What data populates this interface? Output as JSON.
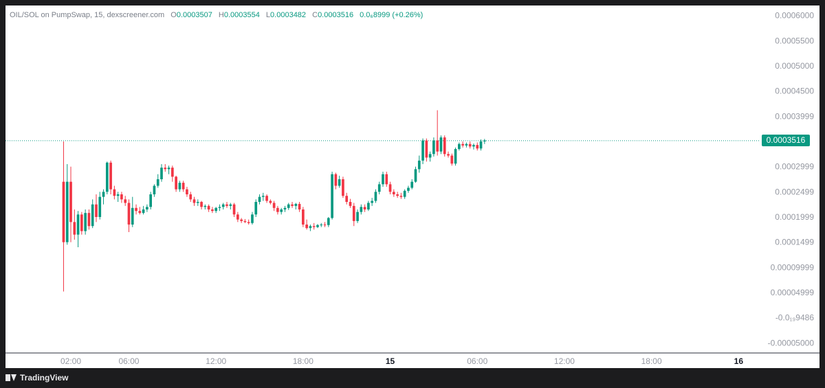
{
  "header": {
    "symbol": "OIL/SOL on PumpSwap, 15, dexscreener.com",
    "open_label": "O",
    "open": "0.0003507",
    "high_label": "H",
    "high": "0.0003554",
    "low_label": "L",
    "low": "0.0003482",
    "close_label": "C",
    "close": "0.0003516",
    "change": "0.0₆8999 (+0.26%)"
  },
  "last_price": "0.0003516",
  "footer": {
    "brand": "TradingView"
  },
  "colors": {
    "up": "#089981",
    "down": "#f23645",
    "axis_text": "#9598a1",
    "last_line": "#089981"
  },
  "chart_data": {
    "type": "candlestick",
    "title": "",
    "xlabel": "",
    "ylabel": "",
    "ylim": [
      -7e-05,
      0.00062
    ],
    "y_ticks": [
      {
        "value": 0.0006,
        "label": "0.0006000"
      },
      {
        "value": 0.00055,
        "label": "0.0005500"
      },
      {
        "value": 0.0005,
        "label": "0.0005000"
      },
      {
        "value": 0.00045,
        "label": "0.0004500"
      },
      {
        "value": 0.0004,
        "label": "0.0003999"
      },
      {
        "value": 0.00035,
        "label": ""
      },
      {
        "value": 0.0003,
        "label": "0.0002999"
      },
      {
        "value": 0.00025,
        "label": "0.0002499"
      },
      {
        "value": 0.0002,
        "label": "0.0001999"
      },
      {
        "value": 0.00015,
        "label": "0.0001499"
      },
      {
        "value": 0.0001,
        "label": "0.00009999"
      },
      {
        "value": 5e-05,
        "label": "0.00004999"
      },
      {
        "value": 0.0,
        "label": "-0.0₁₉9486"
      },
      {
        "value": -5e-05,
        "label": "-0.00005000"
      }
    ],
    "x_ticks": [
      {
        "hour": 2,
        "label": "02:00",
        "bold": false
      },
      {
        "hour": 6,
        "label": "06:00",
        "bold": false
      },
      {
        "hour": 12,
        "label": "12:00",
        "bold": false
      },
      {
        "hour": 18,
        "label": "18:00",
        "bold": false
      },
      {
        "hour": 24,
        "label": "15",
        "bold": true
      },
      {
        "hour": 30,
        "label": "06:00",
        "bold": false
      },
      {
        "hour": 36,
        "label": "12:00",
        "bold": false
      },
      {
        "hour": 42,
        "label": "18:00",
        "bold": false
      },
      {
        "hour": 48,
        "label": "16",
        "bold": true
      }
    ],
    "x_range_hours": [
      -2.5,
      49.5
    ],
    "interval_minutes": 15,
    "last_price": 0.0003516,
    "candles": [
      {
        "t": 1.5,
        "o": 0.00027,
        "h": 0.00035,
        "l": 5.2e-05,
        "c": 0.00015
      },
      {
        "t": 1.75,
        "o": 0.00015,
        "h": 0.000305,
        "l": 0.000145,
        "c": 0.00027
      },
      {
        "t": 2.0,
        "o": 0.00027,
        "h": 0.0003,
        "l": 0.00015,
        "c": 0.00019
      },
      {
        "t": 2.25,
        "o": 0.00019,
        "h": 0.000215,
        "l": 0.000155,
        "c": 0.000165
      },
      {
        "t": 2.5,
        "o": 0.000165,
        "h": 0.000212,
        "l": 0.00014,
        "c": 0.000205
      },
      {
        "t": 2.75,
        "o": 0.000205,
        "h": 0.00021,
        "l": 0.000165,
        "c": 0.000172
      },
      {
        "t": 3.0,
        "o": 0.000172,
        "h": 0.000215,
        "l": 0.000165,
        "c": 0.000208
      },
      {
        "t": 3.25,
        "o": 0.000208,
        "h": 0.000215,
        "l": 0.000175,
        "c": 0.000182
      },
      {
        "t": 3.5,
        "o": 0.000182,
        "h": 0.000235,
        "l": 0.000178,
        "c": 0.000225
      },
      {
        "t": 3.75,
        "o": 0.000225,
        "h": 0.000245,
        "l": 0.00019,
        "c": 0.0002
      },
      {
        "t": 4.0,
        "o": 0.0002,
        "h": 0.00025,
        "l": 0.000195,
        "c": 0.00024
      },
      {
        "t": 4.25,
        "o": 0.00024,
        "h": 0.000255,
        "l": 0.000225,
        "c": 0.00025
      },
      {
        "t": 4.5,
        "o": 0.00025,
        "h": 0.00031,
        "l": 0.000245,
        "c": 0.000308
      },
      {
        "t": 4.75,
        "o": 0.000308,
        "h": 0.000312,
        "l": 0.000245,
        "c": 0.000255
      },
      {
        "t": 5.0,
        "o": 0.000255,
        "h": 0.000262,
        "l": 0.000235,
        "c": 0.000242
      },
      {
        "t": 5.25,
        "o": 0.000242,
        "h": 0.00025,
        "l": 0.00023,
        "c": 0.000245
      },
      {
        "t": 5.5,
        "o": 0.000245,
        "h": 0.00025,
        "l": 0.000228,
        "c": 0.000235
      },
      {
        "t": 5.75,
        "o": 0.000235,
        "h": 0.000242,
        "l": 0.000222,
        "c": 0.000228
      },
      {
        "t": 6.0,
        "o": 0.000228,
        "h": 0.000235,
        "l": 0.00017,
        "c": 0.000185
      },
      {
        "t": 6.25,
        "o": 0.000185,
        "h": 0.00024,
        "l": 0.00018,
        "c": 0.000218
      },
      {
        "t": 6.5,
        "o": 0.000218,
        "h": 0.000225,
        "l": 0.000205,
        "c": 0.000212
      },
      {
        "t": 6.75,
        "o": 0.000212,
        "h": 0.00022,
        "l": 0.000205,
        "c": 0.000208
      },
      {
        "t": 7.0,
        "o": 0.000208,
        "h": 0.000222,
        "l": 0.000205,
        "c": 0.000215
      },
      {
        "t": 7.25,
        "o": 0.000215,
        "h": 0.000225,
        "l": 0.00021,
        "c": 0.00022
      },
      {
        "t": 7.5,
        "o": 0.00022,
        "h": 0.00025,
        "l": 0.000215,
        "c": 0.000245
      },
      {
        "t": 7.75,
        "o": 0.000245,
        "h": 0.000265,
        "l": 0.00024,
        "c": 0.000262
      },
      {
        "t": 8.0,
        "o": 0.000262,
        "h": 0.000285,
        "l": 0.000258,
        "c": 0.000275
      },
      {
        "t": 8.25,
        "o": 0.000275,
        "h": 0.000305,
        "l": 0.00027,
        "c": 0.000298
      },
      {
        "t": 8.5,
        "o": 0.000298,
        "h": 0.000305,
        "l": 0.00029,
        "c": 0.000295
      },
      {
        "t": 8.75,
        "o": 0.000295,
        "h": 0.000302,
        "l": 0.000285,
        "c": 0.000298
      },
      {
        "t": 9.0,
        "o": 0.000298,
        "h": 0.000302,
        "l": 0.00027,
        "c": 0.00028
      },
      {
        "t": 9.25,
        "o": 0.00028,
        "h": 0.000282,
        "l": 0.00025,
        "c": 0.000255
      },
      {
        "t": 9.5,
        "o": 0.000255,
        "h": 0.000272,
        "l": 0.00025,
        "c": 0.000268
      },
      {
        "t": 9.75,
        "o": 0.000268,
        "h": 0.000272,
        "l": 0.00025,
        "c": 0.000255
      },
      {
        "t": 10.0,
        "o": 0.000255,
        "h": 0.00026,
        "l": 0.00024,
        "c": 0.000245
      },
      {
        "t": 10.25,
        "o": 0.000245,
        "h": 0.00025,
        "l": 0.00023,
        "c": 0.000235
      },
      {
        "t": 10.5,
        "o": 0.000235,
        "h": 0.00024,
        "l": 0.000222,
        "c": 0.000228
      },
      {
        "t": 10.75,
        "o": 0.000228,
        "h": 0.000235,
        "l": 0.000222,
        "c": 0.00023
      },
      {
        "t": 11.0,
        "o": 0.00023,
        "h": 0.000232,
        "l": 0.000215,
        "c": 0.00022
      },
      {
        "t": 11.25,
        "o": 0.00022,
        "h": 0.000225,
        "l": 0.000215,
        "c": 0.000222
      },
      {
        "t": 11.5,
        "o": 0.000222,
        "h": 0.000225,
        "l": 0.00021,
        "c": 0.000215
      },
      {
        "t": 11.75,
        "o": 0.000215,
        "h": 0.00022,
        "l": 0.000208,
        "c": 0.000212
      },
      {
        "t": 12.0,
        "o": 0.000212,
        "h": 0.00022,
        "l": 0.000208,
        "c": 0.000218
      },
      {
        "t": 12.25,
        "o": 0.000218,
        "h": 0.000225,
        "l": 0.000212,
        "c": 0.00022
      },
      {
        "t": 12.5,
        "o": 0.00022,
        "h": 0.000228,
        "l": 0.000215,
        "c": 0.000225
      },
      {
        "t": 12.75,
        "o": 0.000225,
        "h": 0.00023,
        "l": 0.000218,
        "c": 0.000222
      },
      {
        "t": 13.0,
        "o": 0.000222,
        "h": 0.000228,
        "l": 0.000215,
        "c": 0.000225
      },
      {
        "t": 13.25,
        "o": 0.000225,
        "h": 0.000228,
        "l": 0.0002,
        "c": 0.000205
      },
      {
        "t": 13.5,
        "o": 0.000205,
        "h": 0.00021,
        "l": 0.00019,
        "c": 0.000195
      },
      {
        "t": 13.75,
        "o": 0.000195,
        "h": 0.000198,
        "l": 0.000188,
        "c": 0.000192
      },
      {
        "t": 14.0,
        "o": 0.000192,
        "h": 0.000196,
        "l": 0.000188,
        "c": 0.00019
      },
      {
        "t": 14.25,
        "o": 0.00019,
        "h": 0.000195,
        "l": 0.000185,
        "c": 0.000188
      },
      {
        "t": 14.5,
        "o": 0.000188,
        "h": 0.00021,
        "l": 0.000185,
        "c": 0.000205
      },
      {
        "t": 14.75,
        "o": 0.000205,
        "h": 0.000235,
        "l": 0.0002,
        "c": 0.00023
      },
      {
        "t": 15.0,
        "o": 0.00023,
        "h": 0.000245,
        "l": 0.000225,
        "c": 0.00024
      },
      {
        "t": 15.25,
        "o": 0.00024,
        "h": 0.000248,
        "l": 0.000232,
        "c": 0.000242
      },
      {
        "t": 15.5,
        "o": 0.000242,
        "h": 0.000245,
        "l": 0.000228,
        "c": 0.000232
      },
      {
        "t": 15.75,
        "o": 0.000232,
        "h": 0.000235,
        "l": 0.000225,
        "c": 0.000228
      },
      {
        "t": 16.0,
        "o": 0.000228,
        "h": 0.000232,
        "l": 0.000212,
        "c": 0.000218
      },
      {
        "t": 16.25,
        "o": 0.000218,
        "h": 0.000222,
        "l": 0.000205,
        "c": 0.00021
      },
      {
        "t": 16.5,
        "o": 0.00021,
        "h": 0.000218,
        "l": 0.000205,
        "c": 0.000215
      },
      {
        "t": 16.75,
        "o": 0.000215,
        "h": 0.000222,
        "l": 0.00021,
        "c": 0.000218
      },
      {
        "t": 17.0,
        "o": 0.000218,
        "h": 0.000228,
        "l": 0.000214,
        "c": 0.000225
      },
      {
        "t": 17.25,
        "o": 0.000225,
        "h": 0.00023,
        "l": 0.000218,
        "c": 0.000222
      },
      {
        "t": 17.5,
        "o": 0.000222,
        "h": 0.000228,
        "l": 0.000215,
        "c": 0.000226
      },
      {
        "t": 17.75,
        "o": 0.000226,
        "h": 0.00023,
        "l": 0.00021,
        "c": 0.000215
      },
      {
        "t": 18.0,
        "o": 0.000215,
        "h": 0.00022,
        "l": 0.00018,
        "c": 0.000185
      },
      {
        "t": 18.25,
        "o": 0.000185,
        "h": 0.000195,
        "l": 0.000175,
        "c": 0.000178
      },
      {
        "t": 18.5,
        "o": 0.000178,
        "h": 0.000185,
        "l": 0.000172,
        "c": 0.000182
      },
      {
        "t": 18.75,
        "o": 0.000182,
        "h": 0.000188,
        "l": 0.000175,
        "c": 0.00018
      },
      {
        "t": 19.0,
        "o": 0.00018,
        "h": 0.000186,
        "l": 0.000178,
        "c": 0.000184
      },
      {
        "t": 19.25,
        "o": 0.000184,
        "h": 0.000188,
        "l": 0.00018,
        "c": 0.000185
      },
      {
        "t": 19.5,
        "o": 0.000185,
        "h": 0.00019,
        "l": 0.00018,
        "c": 0.000184
      },
      {
        "t": 19.75,
        "o": 0.000184,
        "h": 0.0002,
        "l": 0.00018,
        "c": 0.000198
      },
      {
        "t": 20.0,
        "o": 0.000198,
        "h": 0.00029,
        "l": 0.000195,
        "c": 0.000285
      },
      {
        "t": 20.25,
        "o": 0.000285,
        "h": 0.000288,
        "l": 0.000255,
        "c": 0.000262
      },
      {
        "t": 20.5,
        "o": 0.000262,
        "h": 0.000282,
        "l": 0.000258,
        "c": 0.000275
      },
      {
        "t": 20.75,
        "o": 0.000275,
        "h": 0.00028,
        "l": 0.000238,
        "c": 0.000242
      },
      {
        "t": 21.0,
        "o": 0.000242,
        "h": 0.000248,
        "l": 0.000225,
        "c": 0.00023
      },
      {
        "t": 21.25,
        "o": 0.00023,
        "h": 0.000236,
        "l": 0.000218,
        "c": 0.000222
      },
      {
        "t": 21.5,
        "o": 0.000222,
        "h": 0.000228,
        "l": 0.000182,
        "c": 0.000192
      },
      {
        "t": 21.75,
        "o": 0.000192,
        "h": 0.000215,
        "l": 0.000188,
        "c": 0.00021
      },
      {
        "t": 22.0,
        "o": 0.00021,
        "h": 0.000225,
        "l": 0.000205,
        "c": 0.00022
      },
      {
        "t": 22.25,
        "o": 0.00022,
        "h": 0.000225,
        "l": 0.00021,
        "c": 0.000215
      },
      {
        "t": 22.5,
        "o": 0.000215,
        "h": 0.000232,
        "l": 0.000212,
        "c": 0.000228
      },
      {
        "t": 22.75,
        "o": 0.000228,
        "h": 0.000238,
        "l": 0.000222,
        "c": 0.000232
      },
      {
        "t": 23.0,
        "o": 0.000232,
        "h": 0.000255,
        "l": 0.000228,
        "c": 0.00025
      },
      {
        "t": 23.25,
        "o": 0.00025,
        "h": 0.00027,
        "l": 0.000245,
        "c": 0.000265
      },
      {
        "t": 23.5,
        "o": 0.000265,
        "h": 0.00029,
        "l": 0.00026,
        "c": 0.000285
      },
      {
        "t": 23.75,
        "o": 0.000285,
        "h": 0.00029,
        "l": 0.00026,
        "c": 0.000265
      },
      {
        "t": 24.0,
        "o": 0.000265,
        "h": 0.00027,
        "l": 0.000245,
        "c": 0.00025
      },
      {
        "t": 24.25,
        "o": 0.00025,
        "h": 0.000255,
        "l": 0.00024,
        "c": 0.000245
      },
      {
        "t": 24.5,
        "o": 0.000245,
        "h": 0.00025,
        "l": 0.000238,
        "c": 0.000242
      },
      {
        "t": 24.75,
        "o": 0.000242,
        "h": 0.000248,
        "l": 0.000236,
        "c": 0.00024
      },
      {
        "t": 25.0,
        "o": 0.00024,
        "h": 0.000255,
        "l": 0.000236,
        "c": 0.000252
      },
      {
        "t": 25.25,
        "o": 0.000252,
        "h": 0.000262,
        "l": 0.000248,
        "c": 0.000258
      },
      {
        "t": 25.5,
        "o": 0.000258,
        "h": 0.000275,
        "l": 0.000255,
        "c": 0.00027
      },
      {
        "t": 25.75,
        "o": 0.00027,
        "h": 0.0003,
        "l": 0.000268,
        "c": 0.000295
      },
      {
        "t": 26.0,
        "o": 0.000295,
        "h": 0.000322,
        "l": 0.000288,
        "c": 0.000312
      },
      {
        "t": 26.25,
        "o": 0.000312,
        "h": 0.000356,
        "l": 0.000305,
        "c": 0.000352
      },
      {
        "t": 26.5,
        "o": 0.000352,
        "h": 0.000356,
        "l": 0.00031,
        "c": 0.000318
      },
      {
        "t": 26.75,
        "o": 0.000318,
        "h": 0.00033,
        "l": 0.00031,
        "c": 0.000325
      },
      {
        "t": 27.0,
        "o": 0.000325,
        "h": 0.000358,
        "l": 0.00032,
        "c": 0.000352
      },
      {
        "t": 27.25,
        "o": 0.000352,
        "h": 0.000412,
        "l": 0.000322,
        "c": 0.00033
      },
      {
        "t": 27.5,
        "o": 0.00033,
        "h": 0.000362,
        "l": 0.000325,
        "c": 0.000358
      },
      {
        "t": 27.75,
        "o": 0.000358,
        "h": 0.000362,
        "l": 0.00032,
        "c": 0.000325
      },
      {
        "t": 28.0,
        "o": 0.000325,
        "h": 0.00033,
        "l": 0.000318,
        "c": 0.000322
      },
      {
        "t": 28.25,
        "o": 0.000322,
        "h": 0.000326,
        "l": 0.000302,
        "c": 0.000306
      },
      {
        "t": 28.5,
        "o": 0.000306,
        "h": 0.000338,
        "l": 0.000302,
        "c": 0.000335
      },
      {
        "t": 28.75,
        "o": 0.000335,
        "h": 0.000348,
        "l": 0.000332,
        "c": 0.000345
      },
      {
        "t": 29.0,
        "o": 0.000345,
        "h": 0.00035,
        "l": 0.000338,
        "c": 0.000342
      },
      {
        "t": 29.25,
        "o": 0.000342,
        "h": 0.000348,
        "l": 0.000338,
        "c": 0.000345
      },
      {
        "t": 29.5,
        "o": 0.000345,
        "h": 0.00035,
        "l": 0.000336,
        "c": 0.00034
      },
      {
        "t": 29.75,
        "o": 0.00034,
        "h": 0.000346,
        "l": 0.000334,
        "c": 0.000343
      },
      {
        "t": 30.0,
        "o": 0.000343,
        "h": 0.000348,
        "l": 0.000332,
        "c": 0.000336
      },
      {
        "t": 30.25,
        "o": 0.000336,
        "h": 0.000354,
        "l": 0.000332,
        "c": 0.00035
      },
      {
        "t": 30.5,
        "o": 0.00035,
        "h": 0.000355,
        "l": 0.000345,
        "c": 0.000352
      }
    ]
  }
}
